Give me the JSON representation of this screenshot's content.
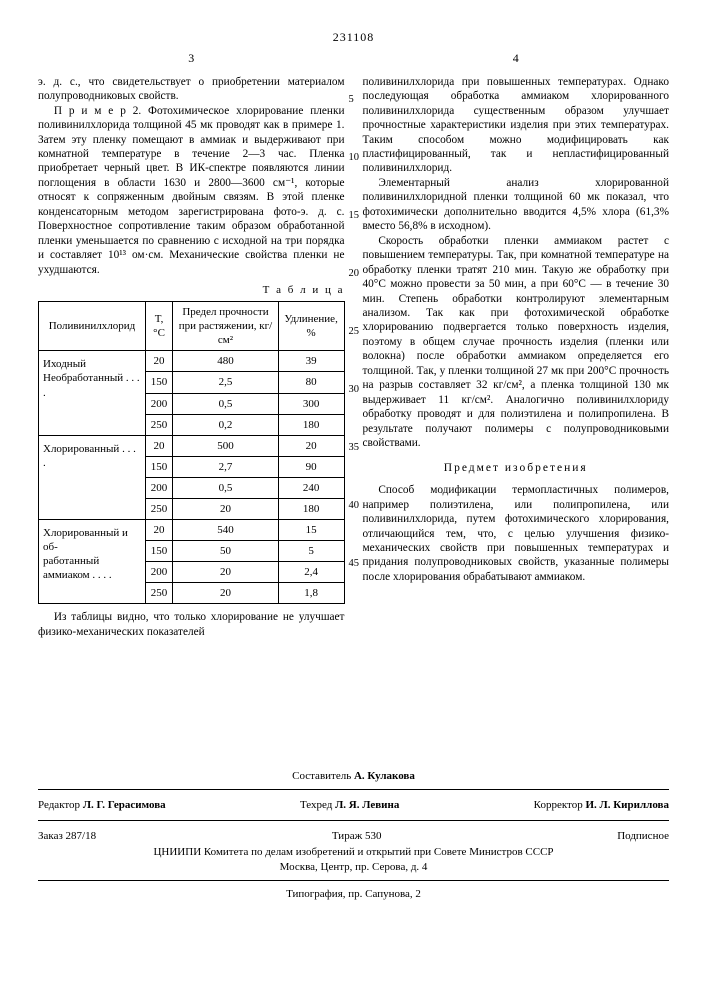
{
  "doc_number": "231108",
  "left_header": "3",
  "right_header": "4",
  "left": {
    "p1": "э. д. с., что свидетельствует о приобретении материалом полупроводниковых свойств.",
    "p2": "П р и м е р 2. Фотохимическое хлорирование пленки поливинилхлорида толщиной 45 мк проводят как в примере 1. Затем эту пленку помещают в аммиак и выдерживают при комнатной температуре в течение 2—3 час. Пленка приобретает черный цвет. В ИК-спектре появляются линии поглощения в области 1630 и 2800—3600 см⁻¹, которые относят к сопряженным двойным связям. В этой пленке конденсаторным методом зарегистрирована фото-э. д. с. Поверхностное сопротивление таким образом обработанной пленки уменьшается по сравнению с исходной на три порядка и составляет 10¹³ ом·см. Механические свойства пленки не ухудшаются.",
    "table_caption": "Т а б л и ц а",
    "table": {
      "headers": [
        "Поливинилхлорид",
        "T, °C",
        "Предел прочности при растяжении, кг/см²",
        "Удлинение, %"
      ],
      "groups": [
        {
          "labels": [
            "Иходный",
            "Необработанный"
          ],
          "rows": [
            [
              "20",
              "480",
              "39"
            ],
            [
              "150",
              "2,5",
              "80"
            ],
            [
              "200",
              "0,5",
              "300"
            ],
            [
              "250",
              "0,2",
              "180"
            ]
          ]
        },
        {
          "labels": [
            "Хлорированный"
          ],
          "rows": [
            [
              "20",
              "500",
              "20"
            ],
            [
              "150",
              "2,7",
              "90"
            ],
            [
              "200",
              "0,5",
              "240"
            ],
            [
              "250",
              "20",
              "180"
            ]
          ]
        },
        {
          "labels": [
            "Хлорированный и об-",
            "работанный аммиаком"
          ],
          "rows": [
            [
              "20",
              "540",
              "15"
            ],
            [
              "150",
              "50",
              "5"
            ],
            [
              "200",
              "20",
              "2,4"
            ],
            [
              "250",
              "20",
              "1,8"
            ]
          ]
        }
      ]
    },
    "p3": "Из таблицы видно, что только хлорирование не улучшает физико-механических показателей"
  },
  "right": {
    "markers": [
      "5",
      "10",
      "15",
      "20",
      "25",
      "30",
      "35",
      "40",
      "45"
    ],
    "p1": "поливинилхлорида при повышенных температурах. Однако последующая обработка аммиаком хлорированного поливинилхлорида существенным образом улучшает прочностные характеристики изделия при этих температурах. Таким способом можно модифицировать как пластифицированный, так и непластифицированный поливинилхлорид.",
    "p2": "Элементарный анализ хлорированной поливинилхлоридной пленки толщиной 60 мк показал, что фотохимически дополнительно вводится 4,5% хлора (61,3% вместо 56,8% в исходном).",
    "p3": "Скорость обработки пленки аммиаком растет с повышением температуры. Так, при комнатной температуре на обработку пленки тратят 210 мин. Такую же обработку при 40°С можно провести за 50 мин, а при 60°С — в течение 30 мин. Степень обработки контролируют элементарным анализом. Так как при фотохимической обработке хлорированию подвергается только поверхность изделия, поэтому в общем случае прочность изделия (пленки или волокна) после обработки аммиаком определяется его толщиной. Так, у пленки толщиной 27 мк при 200°С прочность на разрыв составляет 32 кг/см², а пленка толщиной 130 мк выдерживает 11 кг/см². Аналогично поливинилхлориду обработку проводят и для полиэтилена и полипропилена. В результате получают полимеры с полупроводниковыми свойствами.",
    "subject": "Предмет изобретения",
    "p4": "Способ модификации термопластичных полимеров, например полиэтилена, или полипропилена, или поливинилхлорида, путем фотохимического хлорирования, отличающийся тем, что, с целью улучшения физико-механических свойств при повышенных температурах и придания полупроводниковых свойств, указанные полимеры после хлорирования обрабатывают аммиаком."
  },
  "footer": {
    "composer_lbl": "Составитель",
    "composer": "А. Кулакова",
    "editor_lbl": "Редактор",
    "editor": "Л. Г. Герасимова",
    "tech_lbl": "Техред",
    "tech": "Л. Я. Левина",
    "corr_lbl": "Корректор",
    "corr": "И. Л. Кириллова",
    "order": "Заказ 287/18",
    "tirage_lbl": "Тираж",
    "tirage": "530",
    "subscript": "Подписное",
    "org1": "ЦНИИПИ Комитета по делам изобретений и открытий при Совете Министров СССР",
    "org2": "Москва, Центр, пр. Серова, д. 4",
    "typ": "Типография, пр. Сапунова, 2"
  }
}
